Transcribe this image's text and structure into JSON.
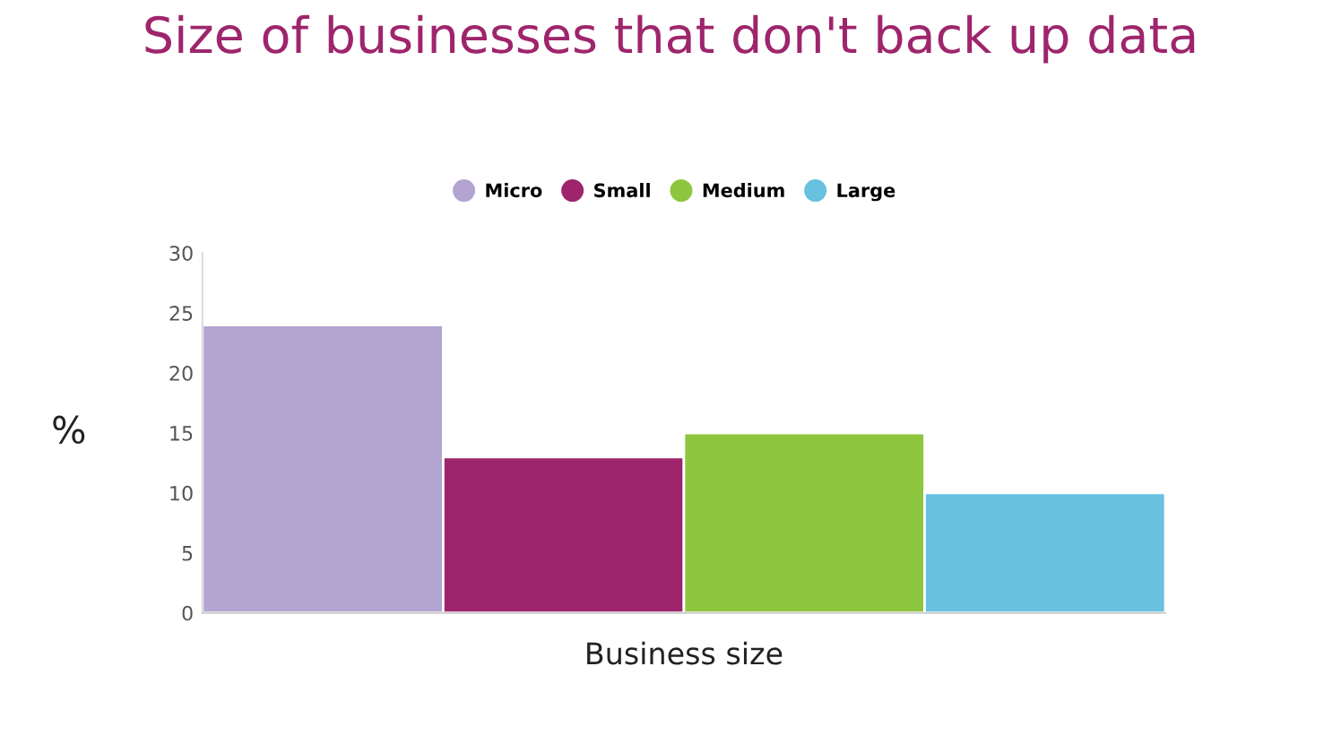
{
  "chart_data": {
    "type": "bar",
    "title": "Size of businesses that don't back up data",
    "xlabel": "Business size",
    "ylabel": "%",
    "categories": [
      null
    ],
    "series": [
      {
        "name": "Micro",
        "color": "#b3a4d1",
        "values": [
          24
        ]
      },
      {
        "name": "Small",
        "color": "#9e256c",
        "values": [
          13
        ]
      },
      {
        "name": "Medium",
        "color": "#8dc63f",
        "values": [
          15
        ]
      },
      {
        "name": "Large",
        "color": "#67c1df",
        "values": [
          10
        ]
      }
    ],
    "ylim": [
      0,
      30
    ],
    "yticks": [
      0,
      5,
      10,
      15,
      20,
      25,
      30
    ],
    "grid": false,
    "legend": "top",
    "marker": "circle"
  }
}
